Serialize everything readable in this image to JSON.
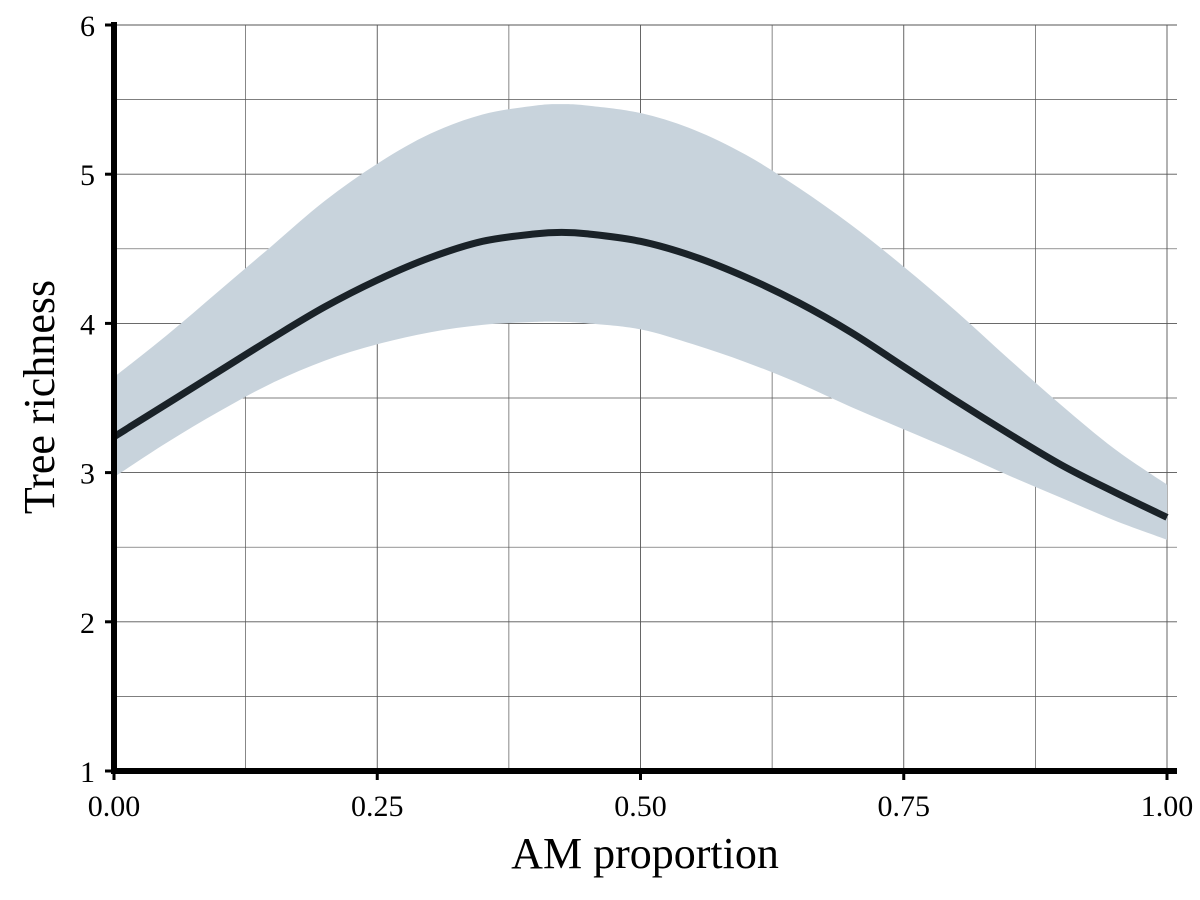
{
  "chart_data": {
    "type": "line",
    "title": "",
    "xlabel": "AM proportion",
    "ylabel": "Tree richness",
    "xlim": [
      0,
      1
    ],
    "ylim": [
      1,
      6
    ],
    "x_ticks": [
      0,
      0.25,
      0.5,
      0.75,
      1
    ],
    "x_tick_labels": [
      "0.00",
      "0.25",
      "0.50",
      "0.75",
      "1.00"
    ],
    "x_minor_ticks": [
      0.125,
      0.375,
      0.625,
      0.875
    ],
    "y_ticks": [
      1,
      2,
      3,
      4,
      5,
      6
    ],
    "y_tick_labels": [
      "1",
      "2",
      "3",
      "4",
      "5",
      "6"
    ],
    "y_minor_ticks": [
      1.5,
      2.5,
      3.5,
      4.5,
      5.5
    ],
    "grid": true,
    "legend": "none",
    "colors": {
      "line": "#1a2228",
      "ribbon": "#c8d3dc",
      "grid": "#555555",
      "axis": "#000000"
    },
    "series": [
      {
        "x": [
          0,
          0.05,
          0.1,
          0.15,
          0.2,
          0.25,
          0.3,
          0.35,
          0.4,
          0.425,
          0.45,
          0.5,
          0.55,
          0.6,
          0.65,
          0.7,
          0.75,
          0.8,
          0.85,
          0.9,
          0.95,
          1.0
        ],
        "y": [
          3.24,
          3.46,
          3.68,
          3.9,
          4.11,
          4.29,
          4.44,
          4.55,
          4.6,
          4.61,
          4.6,
          4.55,
          4.45,
          4.31,
          4.14,
          3.94,
          3.71,
          3.48,
          3.26,
          3.05,
          2.87,
          2.7
        ],
        "lower": [
          2.97,
          3.2,
          3.41,
          3.6,
          3.75,
          3.86,
          3.94,
          3.99,
          4.01,
          4.01,
          4.0,
          3.96,
          3.86,
          3.74,
          3.6,
          3.44,
          3.29,
          3.14,
          2.98,
          2.83,
          2.68,
          2.55
        ],
        "upper": [
          3.64,
          3.92,
          4.22,
          4.52,
          4.82,
          5.07,
          5.27,
          5.4,
          5.46,
          5.47,
          5.46,
          5.41,
          5.3,
          5.13,
          4.91,
          4.66,
          4.38,
          4.08,
          3.76,
          3.45,
          3.16,
          2.92
        ]
      }
    ]
  }
}
